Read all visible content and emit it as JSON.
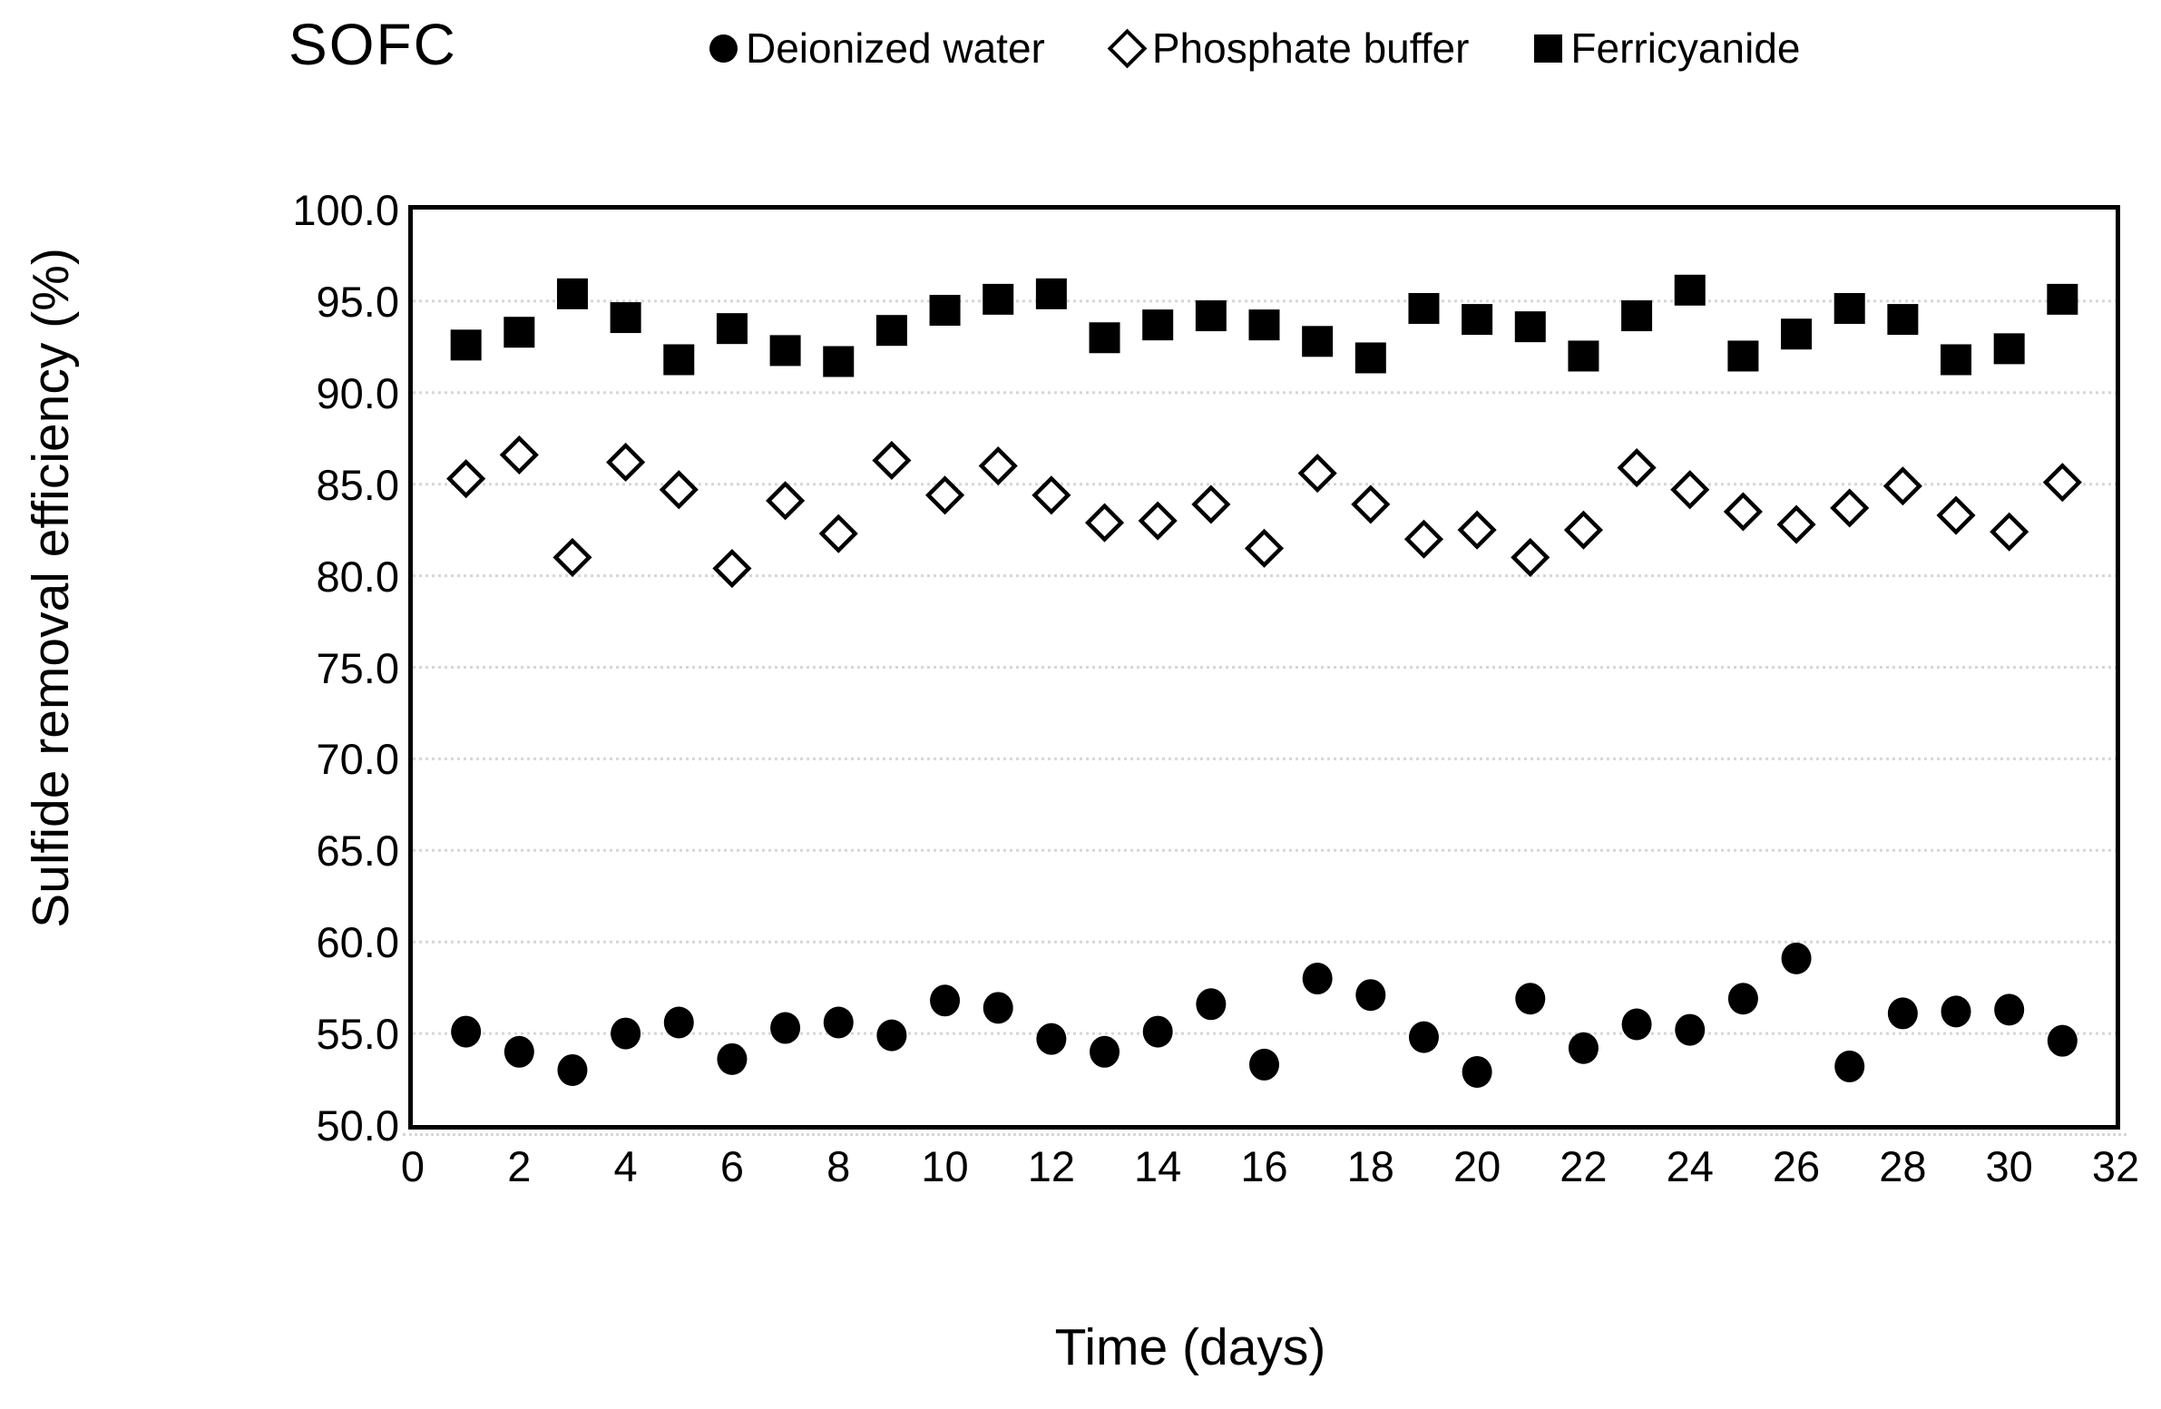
{
  "chart_data": {
    "type": "scatter",
    "title": "SOFC",
    "xlabel": "Time (days)",
    "ylabel": "Sulfide removal efficiency (%)",
    "xlim": [
      0,
      32
    ],
    "ylim": [
      50.0,
      100.0
    ],
    "x_tick_step": 2,
    "y_tick_step": 5,
    "y_tick_decimals": 1,
    "grid": "horizontal-dotted",
    "legend_position": "top-center",
    "x": [
      1,
      2,
      3,
      4,
      5,
      6,
      7,
      8,
      9,
      10,
      11,
      12,
      13,
      14,
      15,
      16,
      17,
      18,
      19,
      20,
      21,
      22,
      23,
      24,
      25,
      26,
      27,
      28,
      29,
      30,
      31
    ],
    "series": [
      {
        "name": "Deionized water",
        "marker": "filled-circle",
        "values": [
          55.1,
          54.0,
          53.0,
          55.0,
          55.6,
          53.6,
          55.3,
          55.6,
          54.9,
          56.8,
          56.4,
          54.7,
          54.0,
          55.1,
          56.6,
          53.3,
          58.0,
          57.1,
          54.8,
          52.9,
          56.9,
          54.2,
          55.5,
          55.2,
          56.9,
          59.1,
          53.2,
          56.1,
          56.2,
          56.3,
          54.6
        ]
      },
      {
        "name": "Phosphate buffer",
        "marker": "open-diamond",
        "values": [
          85.3,
          86.6,
          81.0,
          86.2,
          84.7,
          80.4,
          84.1,
          82.3,
          86.3,
          84.4,
          86.0,
          84.4,
          82.9,
          83.0,
          83.9,
          81.5,
          85.6,
          83.9,
          82.0,
          82.5,
          81.0,
          82.5,
          85.9,
          84.7,
          83.5,
          82.8,
          83.7,
          84.9,
          83.3,
          82.4,
          85.1
        ]
      },
      {
        "name": "Ferricyanide",
        "marker": "filled-square",
        "values": [
          92.6,
          93.3,
          95.4,
          94.1,
          91.8,
          93.5,
          92.3,
          91.7,
          93.4,
          94.5,
          95.1,
          95.4,
          93.0,
          93.7,
          94.2,
          93.7,
          92.8,
          91.9,
          94.6,
          94.0,
          93.6,
          92.0,
          94.2,
          95.6,
          92.0,
          93.2,
          94.6,
          94.0,
          91.8,
          92.4,
          95.1
        ]
      }
    ],
    "colors": {
      "marker": "#000000",
      "gridline": "#d6d6d6",
      "frame": "#000000",
      "background": "#ffffff"
    }
  }
}
